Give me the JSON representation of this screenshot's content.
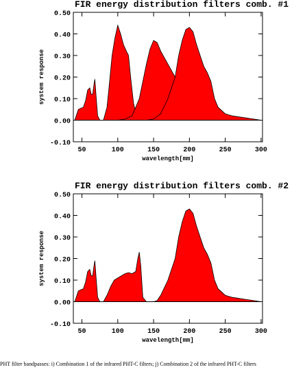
{
  "chart_data": [
    {
      "type": "area",
      "title": "FIR energy distribution filters comb. #1",
      "x_label": "wavelength[mm]",
      "y_label": "system response",
      "xlim": [
        38,
        302
      ],
      "xticks": [
        50,
        100,
        150,
        200,
        250,
        300
      ],
      "ylim": [
        -0.1,
        0.5
      ],
      "yticks": [
        {
          "value": -0.1,
          "label": "-0.10"
        },
        {
          "value": 0,
          "label": "0.00"
        },
        {
          "value": 0.1,
          "label": "0.10"
        },
        {
          "value": 0.2,
          "label": "0.20"
        },
        {
          "value": 0.3,
          "label": "0.30"
        },
        {
          "value": 0.4,
          "label": "0.40"
        },
        {
          "value": 0.5,
          "label": "0.50"
        }
      ],
      "series": [
        {
          "color": "#ff0000",
          "x": [
            40,
            45,
            48,
            52,
            55,
            58,
            61,
            63,
            65,
            67,
            68,
            70,
            72,
            75,
            80,
            85,
            88,
            92,
            96,
            100,
            104,
            108,
            112,
            115,
            118,
            122,
            126,
            130,
            135
          ],
          "values": [
            0,
            0.05,
            0.055,
            0.06,
            0.09,
            0.14,
            0.15,
            0.12,
            0.12,
            0.17,
            0.19,
            0.1,
            0.02,
            0,
            0,
            0.06,
            0.16,
            0.3,
            0.38,
            0.44,
            0.4,
            0.35,
            0.32,
            0.3,
            0.2,
            0.08,
            0.02,
            0.005,
            0
          ]
        },
        {
          "color": "#ff0000",
          "x": [
            100,
            110,
            120,
            130,
            140,
            145,
            150,
            155,
            160,
            170,
            180,
            190,
            200,
            210,
            220,
            230,
            240
          ],
          "values": [
            0,
            0.005,
            0.02,
            0.1,
            0.26,
            0.33,
            0.37,
            0.36,
            0.32,
            0.26,
            0.2,
            0.12,
            0.06,
            0.03,
            0.01,
            0.005,
            0
          ]
        },
        {
          "color": "#ff0000",
          "x": [
            140,
            150,
            160,
            170,
            180,
            185,
            190,
            195,
            200,
            205,
            210,
            215,
            220,
            225,
            230,
            235,
            240,
            250,
            260,
            270,
            280,
            290,
            300
          ],
          "values": [
            0,
            0.005,
            0.03,
            0.1,
            0.2,
            0.3,
            0.37,
            0.42,
            0.43,
            0.41,
            0.35,
            0.3,
            0.25,
            0.22,
            0.18,
            0.1,
            0.06,
            0.03,
            0.02,
            0.015,
            0.01,
            0.005,
            0
          ]
        }
      ]
    },
    {
      "type": "area",
      "title": "FIR energy distribution filters comb. #2",
      "x_label": "wavelength[mm]",
      "y_label": "system response",
      "xlim": [
        38,
        302
      ],
      "xticks": [
        50,
        100,
        150,
        200,
        250,
        300
      ],
      "ylim": [
        -0.1,
        0.5
      ],
      "yticks": [
        {
          "value": -0.1,
          "label": "-0.10"
        },
        {
          "value": 0,
          "label": "0.00"
        },
        {
          "value": 0.1,
          "label": "0.10"
        },
        {
          "value": 0.2,
          "label": "0.20"
        },
        {
          "value": 0.3,
          "label": "0.30"
        },
        {
          "value": 0.4,
          "label": "0.40"
        },
        {
          "value": 0.5,
          "label": "0.50"
        }
      ],
      "series": [
        {
          "color": "#ff0000",
          "x": [
            40,
            45,
            48,
            52,
            55,
            58,
            61,
            63,
            65,
            67,
            68,
            70,
            72,
            75
          ],
          "values": [
            0,
            0.05,
            0.055,
            0.06,
            0.09,
            0.14,
            0.15,
            0.12,
            0.12,
            0.17,
            0.19,
            0.1,
            0.02,
            0
          ]
        },
        {
          "color": "#ff0000",
          "x": [
            80,
            85,
            90,
            95,
            100,
            105,
            110,
            115,
            120,
            125,
            128,
            130,
            132,
            135,
            140
          ],
          "values": [
            0,
            0.03,
            0.07,
            0.1,
            0.11,
            0.12,
            0.13,
            0.135,
            0.13,
            0.14,
            0.2,
            0.23,
            0.17,
            0.02,
            0
          ]
        },
        {
          "color": "#ff0000",
          "x": [
            150,
            155,
            160,
            170,
            180,
            185,
            190,
            195,
            200,
            205,
            210,
            215,
            220,
            225,
            230,
            235,
            240,
            250,
            260,
            270,
            280,
            290,
            300
          ],
          "values": [
            0,
            0.005,
            0.03,
            0.1,
            0.2,
            0.3,
            0.37,
            0.42,
            0.43,
            0.41,
            0.35,
            0.3,
            0.25,
            0.22,
            0.18,
            0.1,
            0.06,
            0.03,
            0.02,
            0.015,
            0.01,
            0.005,
            0
          ]
        }
      ]
    }
  ],
  "caption": "PHT filter bandpasses: i) Combination 1 of the infrared PHT-C filters; j) Combination 2 of the infrared PHT-C filters"
}
